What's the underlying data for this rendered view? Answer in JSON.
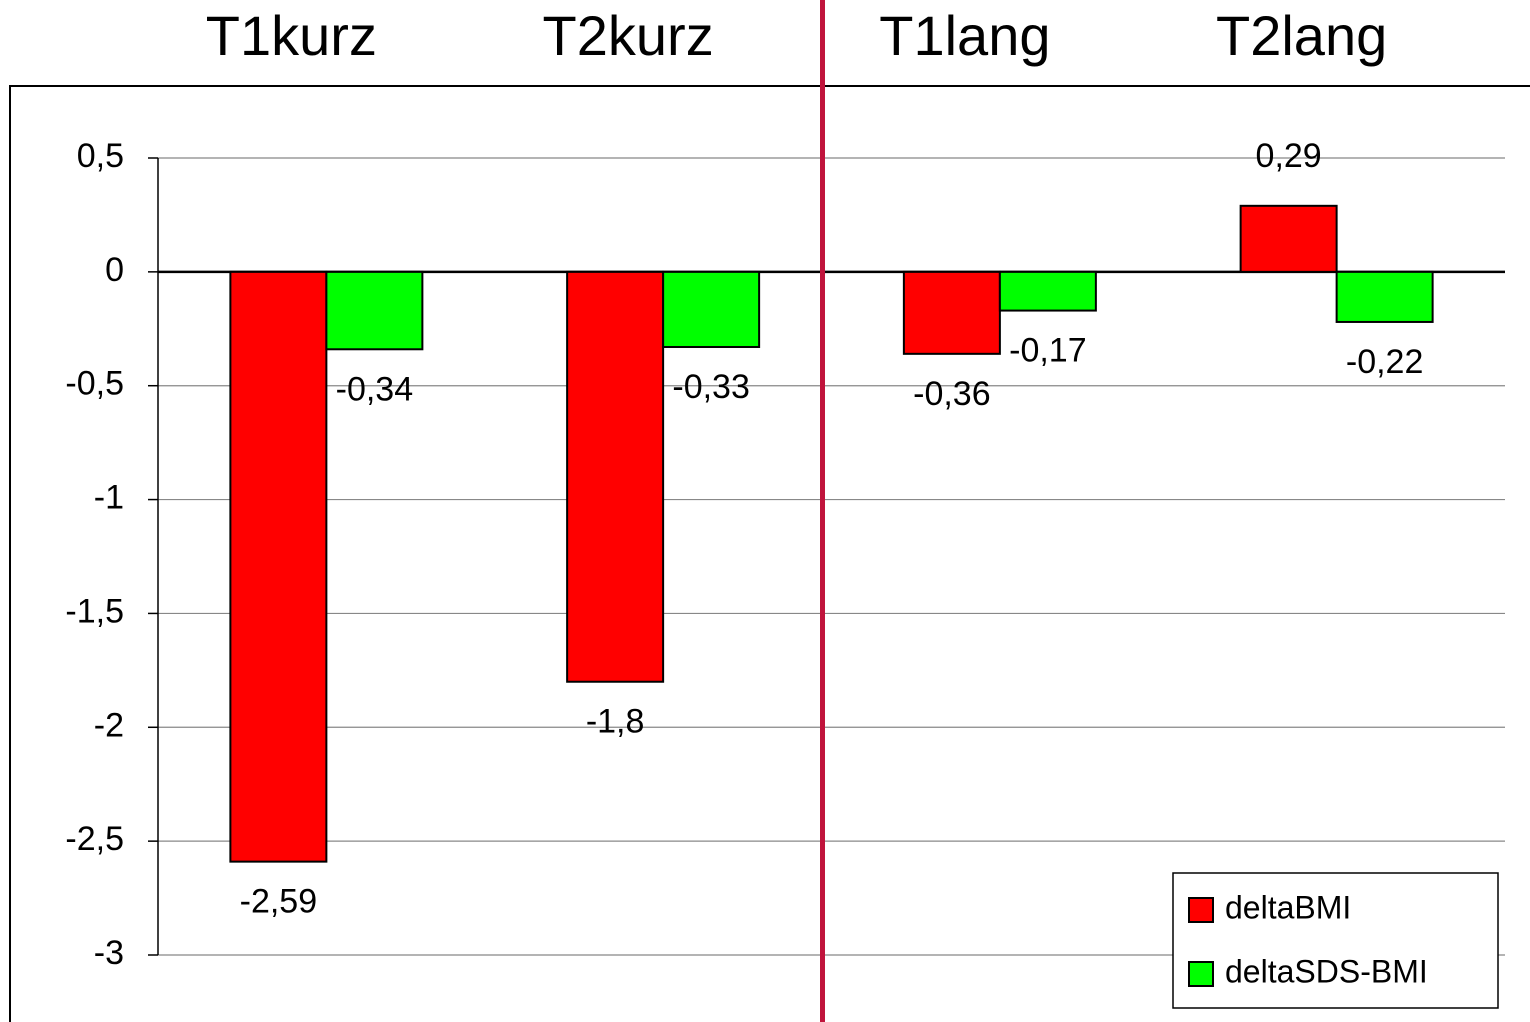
{
  "chart_data": {
    "type": "bar",
    "categories": [
      "T1kurz",
      "T2kurz",
      "T1lang",
      "T2lang"
    ],
    "series": [
      {
        "name": "deltaBMI",
        "color": "#ff0000",
        "values": [
          -2.59,
          -1.8,
          -0.36,
          0.29
        ],
        "value_labels": [
          "-2,59",
          "-1,8",
          "-0,36",
          "0,29"
        ]
      },
      {
        "name": "deltaSDS-BMI",
        "color": "#00ff00",
        "values": [
          -0.34,
          -0.33,
          -0.17,
          -0.22
        ],
        "value_labels": [
          "-0,34",
          "-0,33",
          "-0,17",
          "-0,22"
        ]
      }
    ],
    "ylim": [
      -3,
      0.5
    ],
    "yticks": [
      {
        "value": 0.5,
        "label": "0,5"
      },
      0,
      {
        "value": -0.5,
        "label": "-0,5"
      },
      -1,
      {
        "value": -1.5,
        "label": "-1,5"
      },
      -2,
      {
        "value": -2.5,
        "label": "-2,5"
      },
      -3
    ],
    "grid": true,
    "legend": "lower right"
  }
}
